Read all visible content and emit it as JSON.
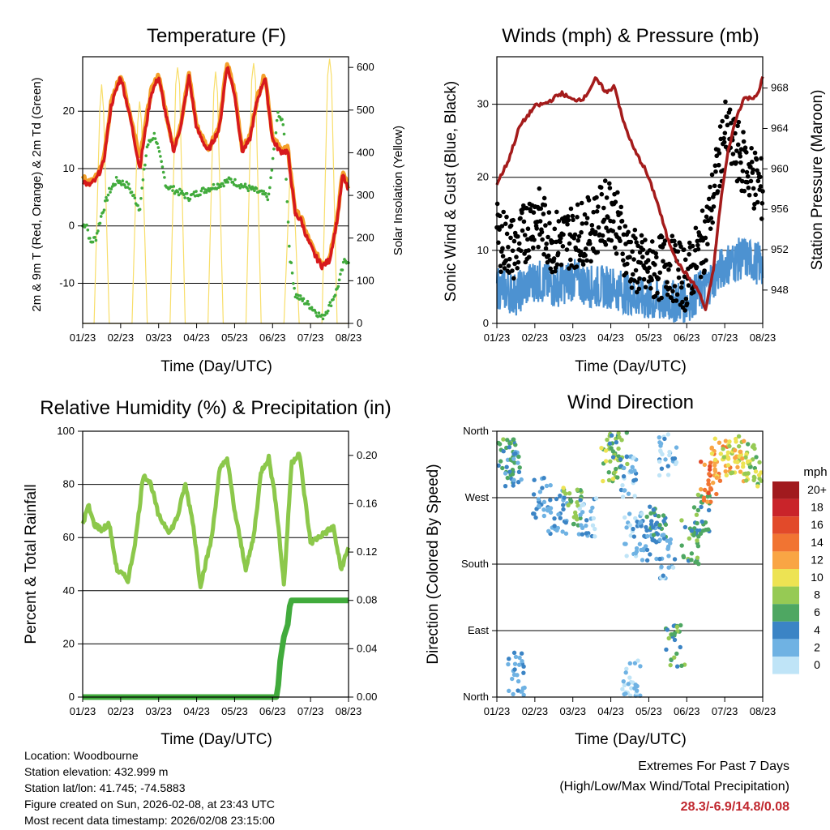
{
  "chart_data": [
    {
      "type": "line",
      "title": "Temperature (F)",
      "xlabel": "Time (Day/UTC)",
      "ylabel": "2m & 9m T (Red, Orange) & 2m Td (Green)",
      "y2label": "Solar Insolation (Yellow)",
      "x_ticks": [
        "01/23",
        "02/23",
        "03/23",
        "04/23",
        "05/23",
        "06/23",
        "07/23",
        "08/23"
      ],
      "ylim": [
        -17,
        29.5
      ],
      "y_ticks": [
        -10,
        0,
        10,
        20
      ],
      "y2lim": [
        0,
        625
      ],
      "y2_ticks": [
        0,
        100,
        200,
        300,
        400,
        500,
        600
      ],
      "grid": true,
      "series": [
        {
          "name": "2m T",
          "color": "#d7191c",
          "x": [
            0,
            0.15,
            0.35,
            0.55,
            0.75,
            1.0,
            1.25,
            1.5,
            1.8,
            2.0,
            2.2,
            2.4,
            2.6,
            2.8,
            3.0,
            3.3,
            3.6,
            3.8,
            4.0,
            4.2,
            4.4,
            4.6,
            4.8,
            5.0,
            5.2,
            5.4,
            5.6,
            5.75,
            5.9,
            6.1,
            6.3,
            6.5,
            6.7,
            6.85,
            7.0
          ],
          "values": [
            8,
            7,
            8,
            11,
            21,
            26,
            19,
            10,
            23,
            26,
            19,
            13,
            18,
            26,
            17,
            13,
            17,
            28,
            23,
            13,
            15,
            22,
            26,
            15,
            13,
            13,
            2,
            1,
            -2,
            -5,
            -7,
            -6,
            1,
            9,
            6
          ]
        },
        {
          "name": "9m T",
          "color": "#f4a02a",
          "x": [
            0,
            0.15,
            0.35,
            0.55,
            0.75,
            1.0,
            1.25,
            1.5,
            1.8,
            2.0,
            2.2,
            2.4,
            2.6,
            2.8,
            3.0,
            3.3,
            3.6,
            3.8,
            4.0,
            4.2,
            4.4,
            4.6,
            4.8,
            5.0,
            5.2,
            5.4,
            5.6,
            5.75,
            5.9,
            6.1,
            6.3,
            6.5,
            6.7,
            6.85,
            7.0
          ],
          "values": [
            8.5,
            7.5,
            8.5,
            11.5,
            21.5,
            26.5,
            19.5,
            12,
            23.5,
            26.5,
            19.5,
            13.5,
            18.5,
            26.5,
            17.5,
            13.5,
            17.5,
            28.5,
            23.5,
            13.5,
            15.5,
            22.5,
            26.5,
            15.5,
            13.5,
            13.5,
            2.5,
            1.5,
            -1.5,
            -4.5,
            -6.5,
            -5.5,
            1.5,
            9.5,
            6.5
          ]
        },
        {
          "name": "2m Td",
          "color": "#41ab3c",
          "x": [
            0,
            0.1,
            0.2,
            0.35,
            0.5,
            0.7,
            0.9,
            1.2,
            1.5,
            1.7,
            1.9,
            2.2,
            2.5,
            2.8,
            3.1,
            3.5,
            3.9,
            4.2,
            4.6,
            4.9,
            5.15,
            5.3,
            5.45,
            5.6,
            5.8,
            6.0,
            6.3,
            6.5,
            6.7,
            6.9,
            7.0
          ],
          "values": [
            0,
            0.5,
            -3,
            -2,
            2,
            6,
            8,
            7,
            3,
            14,
            16,
            7,
            6,
            5,
            6,
            7,
            8,
            7,
            6,
            5,
            20,
            17,
            -5,
            -12,
            -13,
            -14,
            -16,
            -14,
            -11,
            -6,
            -6
          ]
        },
        {
          "name": "Solar Insolation",
          "color": "#f8de6a",
          "axis": "y2",
          "x": [
            0,
            0.3,
            0.45,
            0.5,
            0.55,
            0.7,
            1.3,
            1.45,
            1.5,
            1.55,
            1.7,
            2.3,
            2.45,
            2.5,
            2.55,
            2.7,
            3.3,
            3.45,
            3.5,
            3.55,
            3.7,
            4.3,
            4.45,
            4.5,
            4.55,
            4.7,
            5.3,
            5.45,
            5.5,
            5.55,
            5.7,
            6.3,
            6.45,
            6.5,
            6.55,
            6.7,
            7.0
          ],
          "values": [
            0,
            0,
            500,
            560,
            500,
            0,
            0,
            470,
            520,
            470,
            0,
            0,
            560,
            600,
            560,
            0,
            0,
            540,
            590,
            540,
            0,
            0,
            570,
            610,
            570,
            0,
            0,
            330,
            360,
            330,
            0,
            0,
            580,
            620,
            580,
            0,
            0
          ]
        }
      ]
    },
    {
      "type": "scatter",
      "title": "Winds (mph) & Pressure (mb)",
      "xlabel": "Time (Day/UTC)",
      "ylabel": "Sonic Wind & Gust (Blue, Black)",
      "y2label": "Station Pressure (Maroon)",
      "x_ticks": [
        "01/23",
        "02/23",
        "03/23",
        "04/23",
        "05/23",
        "06/23",
        "07/23",
        "08/23"
      ],
      "ylim": [
        0,
        36.5
      ],
      "y_ticks": [
        0,
        10,
        20,
        30
      ],
      "y2lim": [
        944.7,
        971.1
      ],
      "y2_ticks": [
        948,
        952,
        956,
        960,
        964,
        968
      ],
      "grid": true,
      "series": [
        {
          "name": "Pressure",
          "color": "#a41b1b",
          "axis": "y2",
          "x": [
            0,
            0.3,
            0.6,
            1.0,
            1.3,
            1.7,
            2.0,
            2.3,
            2.6,
            2.9,
            3.1,
            3.3,
            3.6,
            3.9,
            4.2,
            4.5,
            4.8,
            5.0,
            5.3,
            5.5,
            5.7,
            5.9,
            6.1,
            6.3,
            6.5,
            6.7,
            6.9,
            7.0
          ],
          "values": [
            958.5,
            960.8,
            964.2,
            966.2,
            966.5,
            967.5,
            966.8,
            967,
            968.9,
            967.5,
            968.3,
            965,
            962,
            960,
            957,
            953,
            950.5,
            949.5,
            948,
            946,
            950,
            957,
            962,
            965,
            967,
            967,
            967.5,
            969.2
          ]
        },
        {
          "name": "Sonic Wind",
          "color": "#4d92d1",
          "x": [
            0,
            0.5,
            1.0,
            1.5,
            2.0,
            2.5,
            3.0,
            3.5,
            4.0,
            4.5,
            5.0,
            5.5,
            6.0,
            6.5,
            7.0
          ],
          "values": [
            5,
            4,
            6,
            5,
            6,
            5,
            5,
            4,
            3,
            3,
            3,
            5,
            8,
            9,
            8
          ]
        },
        {
          "name": "Gust",
          "color": "#000000",
          "x": [
            0,
            0.5,
            1.0,
            1.5,
            2.0,
            2.5,
            3.0,
            3.5,
            4.0,
            4.5,
            5.0,
            5.5,
            6.0,
            6.5,
            7.0
          ],
          "values": [
            12,
            10,
            15,
            11,
            12,
            13,
            16,
            9,
            7,
            8,
            6,
            12,
            26,
            22,
            18
          ]
        }
      ]
    },
    {
      "type": "line",
      "title": "Relative Humidity (%) & Precipitation (in)",
      "xlabel": "Time (Day/UTC)",
      "ylabel": "Percent & Total Rainfall",
      "x_ticks": [
        "01/23",
        "02/23",
        "03/23",
        "04/23",
        "05/23",
        "06/23",
        "07/23",
        "08/23"
      ],
      "ylim": [
        0,
        100
      ],
      "y_ticks": [
        0,
        20,
        40,
        60,
        80,
        100
      ],
      "y2lim": [
        0,
        0.22
      ],
      "y2_ticks": [
        "0.00",
        "0.04",
        "0.08",
        "0.12",
        "0.16",
        "0.20"
      ],
      "grid": true,
      "series": [
        {
          "name": "Relative Humidity",
          "color": "#8cc84b",
          "x": [
            0,
            0.15,
            0.3,
            0.5,
            0.7,
            0.9,
            1.2,
            1.4,
            1.6,
            1.8,
            2.0,
            2.3,
            2.5,
            2.7,
            2.9,
            3.1,
            3.4,
            3.6,
            3.8,
            4.0,
            4.3,
            4.5,
            4.7,
            4.9,
            5.1,
            5.3,
            5.5,
            5.7,
            6.0,
            6.2,
            6.4,
            6.6,
            6.8,
            7.0
          ],
          "values": [
            65,
            72,
            65,
            63,
            65,
            48,
            44,
            60,
            84,
            80,
            68,
            62,
            68,
            80,
            66,
            42,
            60,
            85,
            90,
            70,
            48,
            60,
            85,
            90,
            72,
            42,
            88,
            92,
            58,
            60,
            62,
            64,
            48,
            56
          ]
        },
        {
          "name": "Total Precipitation",
          "color": "#41ab3c",
          "axis": "y2",
          "x": [
            0,
            5.1,
            5.15,
            5.2,
            5.3,
            5.4,
            5.45,
            5.5,
            7.0
          ],
          "values": [
            0.0,
            0.0,
            0.01,
            0.03,
            0.05,
            0.06,
            0.075,
            0.08,
            0.08
          ]
        }
      ]
    },
    {
      "type": "scatter",
      "title": "Wind Direction",
      "xlabel": "Time (Day/UTC)",
      "ylabel": "Direction (Colored By Speed)",
      "x_ticks": [
        "01/23",
        "02/23",
        "03/23",
        "04/23",
        "05/23",
        "06/23",
        "07/23",
        "08/23"
      ],
      "y_ticks": [
        "North",
        "East",
        "South",
        "West",
        "North"
      ],
      "ylim": [
        0,
        360
      ],
      "grid": true,
      "colorbar": {
        "title": "mph",
        "labels": [
          "20+",
          "18",
          "16",
          "14",
          "12",
          "10",
          "8",
          "6",
          "4",
          "2",
          "0"
        ],
        "colors": [
          "#a11a1e",
          "#c9242a",
          "#e24a2a",
          "#f17432",
          "#f9a544",
          "#ede353",
          "#96ca54",
          "#4ea762",
          "#3b84c5",
          "#6fb2e3",
          "#bfe4f7"
        ]
      },
      "clusters": [
        {
          "x": 0.25,
          "dir": 320,
          "speed": 6
        },
        {
          "x": 0.45,
          "dir": 315,
          "speed": 4
        },
        {
          "x": 1.2,
          "dir": 270,
          "speed": 3
        },
        {
          "x": 1.6,
          "dir": 250,
          "speed": 3
        },
        {
          "x": 2.0,
          "dir": 260,
          "speed": 8
        },
        {
          "x": 2.4,
          "dir": 240,
          "speed": 2
        },
        {
          "x": 3.0,
          "dir": 320,
          "speed": 8
        },
        {
          "x": 3.2,
          "dir": 330,
          "speed": 6
        },
        {
          "x": 3.5,
          "dir": 300,
          "speed": 2
        },
        {
          "x": 3.6,
          "dir": 220,
          "speed": 2
        },
        {
          "x": 4.0,
          "dir": 210,
          "speed": 3
        },
        {
          "x": 4.2,
          "dir": 230,
          "speed": 5
        },
        {
          "x": 4.45,
          "dir": 190,
          "speed": 2
        },
        {
          "x": 4.5,
          "dir": 330,
          "speed": 2
        },
        {
          "x": 4.7,
          "dir": 70,
          "speed": 6
        },
        {
          "x": 5.1,
          "dir": 210,
          "speed": 6
        },
        {
          "x": 5.35,
          "dir": 250,
          "speed": 6
        },
        {
          "x": 5.6,
          "dir": 290,
          "speed": 14
        },
        {
          "x": 5.9,
          "dir": 320,
          "speed": 12
        },
        {
          "x": 6.2,
          "dir": 325,
          "speed": 10
        },
        {
          "x": 6.5,
          "dir": 320,
          "speed": 10
        },
        {
          "x": 6.8,
          "dir": 315,
          "speed": 8
        },
        {
          "x": 0.5,
          "dir": 30,
          "speed": 3
        },
        {
          "x": 3.55,
          "dir": 20,
          "speed": 1
        }
      ]
    }
  ],
  "info": {
    "location": "Location: Woodbourne",
    "elevation": "Station elevation: 432.999 m",
    "latlon": "Station lat/lon: 41.745; -74.5883",
    "created": "Figure created on Sun, 2026-02-08, at 23:43 UTC",
    "recent": "Most recent data timestamp: 2026/02/08 23:15:00"
  },
  "extremes": {
    "title": "Extremes For Past 7 Days",
    "subtitle": "(High/Low/Max Wind/Total Precipitation)",
    "values": "28.3/-6.9/14.8/0.08"
  }
}
